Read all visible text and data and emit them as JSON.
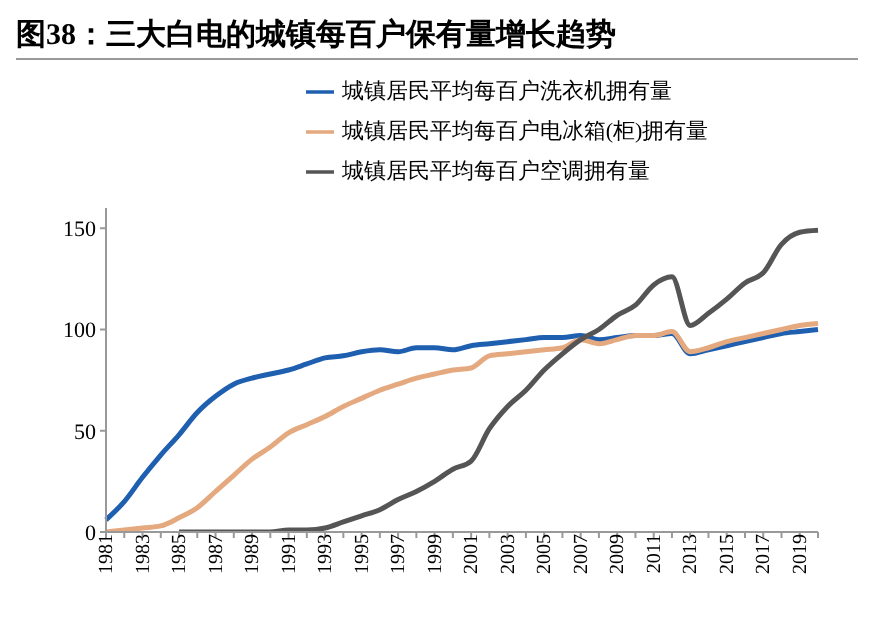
{
  "chart_data": {
    "type": "line",
    "title": "图38：三大白电的城镇每百户保有量增长趋势",
    "categories": [
      "1981",
      null,
      "1983",
      null,
      "1985",
      null,
      "1987",
      null,
      "1989",
      null,
      "1991",
      null,
      "1993",
      null,
      "1995",
      null,
      "1997",
      null,
      "1999",
      null,
      "2001",
      null,
      "2003",
      null,
      "2005",
      null,
      "2007",
      null,
      "2009",
      null,
      "2011",
      null,
      "2013",
      null,
      "2015",
      null,
      "2017",
      null,
      "2019",
      null
    ],
    "series": [
      {
        "name": "城镇居民平均每百户洗衣机拥有量",
        "color": "#1f5fb0",
        "values": [
          6,
          15,
          27,
          38,
          48,
          59,
          67,
          73,
          76,
          78,
          80,
          83,
          86,
          87,
          89,
          90,
          89,
          91,
          91,
          90,
          92,
          93,
          94,
          95,
          96,
          96,
          97,
          95,
          96,
          97,
          97,
          98,
          88,
          90,
          92,
          94,
          96,
          98,
          99,
          100
        ]
      },
      {
        "name": "城镇居民平均每百户电冰箱(柜)拥有量",
        "color": "#e4a97f",
        "values": [
          0,
          1,
          2,
          3,
          7,
          12,
          20,
          28,
          36,
          42,
          49,
          53,
          57,
          62,
          66,
          70,
          73,
          76,
          78,
          80,
          81,
          87,
          88,
          89,
          90,
          91,
          95,
          93,
          95,
          97,
          97,
          99,
          89,
          91,
          94,
          96,
          98,
          100,
          102,
          103
        ]
      },
      {
        "name": "城镇居民平均每百户空调拥有量",
        "color": "#555555",
        "values": [
          null,
          null,
          null,
          null,
          0,
          0,
          0,
          0,
          0,
          0,
          1,
          1,
          2,
          5,
          8,
          11,
          16,
          20,
          25,
          31,
          35,
          51,
          62,
          70,
          80,
          88,
          95,
          100,
          107,
          112,
          122,
          126,
          102,
          108,
          115,
          123,
          128,
          142,
          148,
          149
        ]
      }
    ],
    "ylim": [
      0,
      160
    ],
    "yticks": [
      0,
      50,
      100,
      150
    ],
    "legend": "top",
    "grid": false
  }
}
